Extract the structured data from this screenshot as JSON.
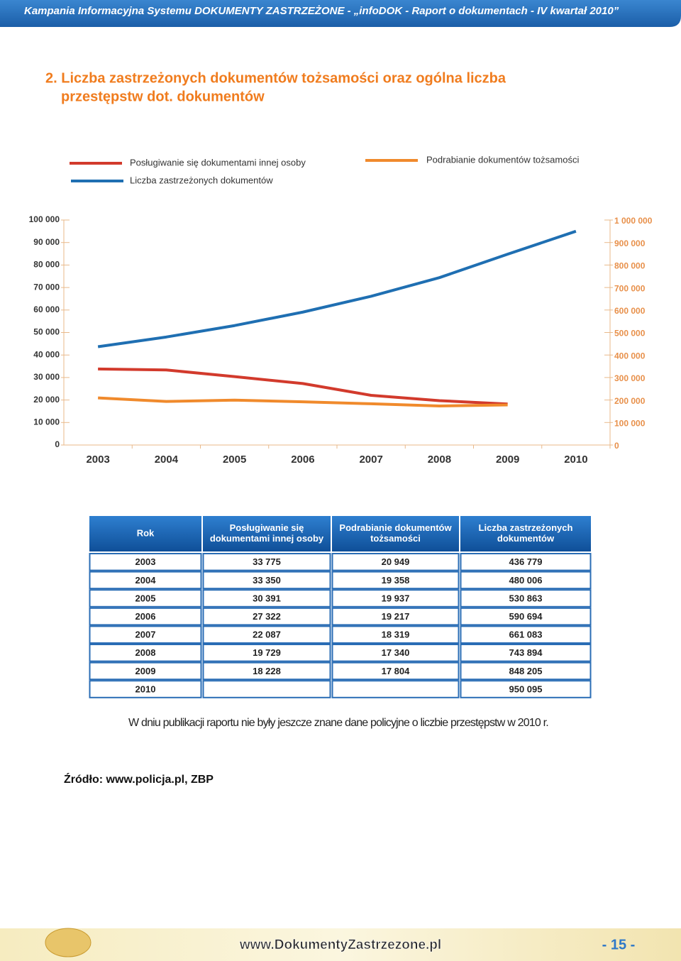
{
  "header": {
    "title": "Kampania Informacyjna Systemu DOKUMENTY ZASTRZEŻONE - „infoDOK - Raport o dokumentach - IV kwartał 2010”"
  },
  "title_lines": [
    "2. Liczba zastrzeżonych dokumentów tożsamości oraz ogólna liczba",
    "przestępstw dot. dokumentów"
  ],
  "chart_data": {
    "type": "line",
    "categories": [
      "2003",
      "2004",
      "2005",
      "2006",
      "2007",
      "2008",
      "2009",
      "2010"
    ],
    "series": [
      {
        "name": "Posługiwanie się dokumentami innej osoby",
        "color": "#d23a2c",
        "axis": "y",
        "values": [
          33775,
          33350,
          30391,
          27322,
          22087,
          19729,
          18228,
          null
        ]
      },
      {
        "name": "Podrabianie dokumentów tożsamości",
        "color": "#f08a2c",
        "axis": "y",
        "values": [
          20949,
          19358,
          19937,
          19217,
          18319,
          17340,
          17804,
          null
        ]
      },
      {
        "name": "Liczba zastrzeżonych dokumentów",
        "color": "#1f6fb2",
        "axis": "y2",
        "values": [
          436779,
          480006,
          530863,
          590694,
          661083,
          743894,
          848205,
          950095
        ]
      }
    ],
    "ylim": [
      0,
      100000
    ],
    "yticks": [
      0,
      {
        "value": 10000,
        "label": "10 000"
      },
      {
        "value": 20000,
        "label": "20 000"
      },
      {
        "value": 30000,
        "label": "30 000"
      },
      {
        "value": 40000,
        "label": "40 000"
      },
      {
        "value": 50000,
        "label": "50 000"
      },
      {
        "value": 60000,
        "label": "60 000"
      },
      {
        "value": 70000,
        "label": "70 000"
      },
      {
        "value": 80000,
        "label": "80 000"
      },
      {
        "value": 90000,
        "label": "90 000"
      },
      {
        "value": 100000,
        "label": "100 000"
      }
    ],
    "y2lim": [
      0,
      1000000
    ],
    "y2ticks": [
      0,
      {
        "value": 100000,
        "label": "100 000"
      },
      {
        "value": 200000,
        "label": "200 000"
      },
      {
        "value": 300000,
        "label": "300 000"
      },
      {
        "value": 400000,
        "label": "400 000"
      },
      {
        "value": 500000,
        "label": "500 000"
      },
      {
        "value": 600000,
        "label": "600 000"
      },
      {
        "value": 700000,
        "label": "700 000"
      },
      {
        "value": 800000,
        "label": "800 000"
      },
      {
        "value": 900000,
        "label": "900 000"
      },
      {
        "value": 1000000,
        "label": "1 000 000"
      }
    ]
  },
  "table": {
    "headers": [
      [
        "Rok"
      ],
      [
        "Posługiwanie się",
        "dokumentami innej osoby"
      ],
      [
        "Podrabianie dokumentów",
        "tożsamości"
      ],
      [
        "Liczba zastrzeżonych",
        "dokumentów"
      ]
    ],
    "rows": [
      [
        "2003",
        "33 775",
        "20 949",
        "436 779"
      ],
      [
        "2004",
        "33 350",
        "19 358",
        "480 006"
      ],
      [
        "2005",
        "30 391",
        "19 937",
        "530 863"
      ],
      [
        "2006",
        "27 322",
        "19 217",
        "590 694"
      ],
      [
        "2007",
        "22 087",
        "18 319",
        "661 083"
      ],
      [
        "2008",
        "19 729",
        "17 340",
        "743 894"
      ],
      [
        "2009",
        "18 228",
        "17 804",
        "848 205"
      ],
      [
        "2010",
        null,
        null,
        "950 095"
      ]
    ]
  },
  "note": "W dniu publikacji raportu nie były jeszcze znane dane policyjne  o liczbie przestępstw w 2010 r.",
  "source": "Źródło: www.policja.pl, ZBP",
  "footer": {
    "url": "www.DokumentyZastrzezone.pl",
    "page": "- 15 -"
  }
}
